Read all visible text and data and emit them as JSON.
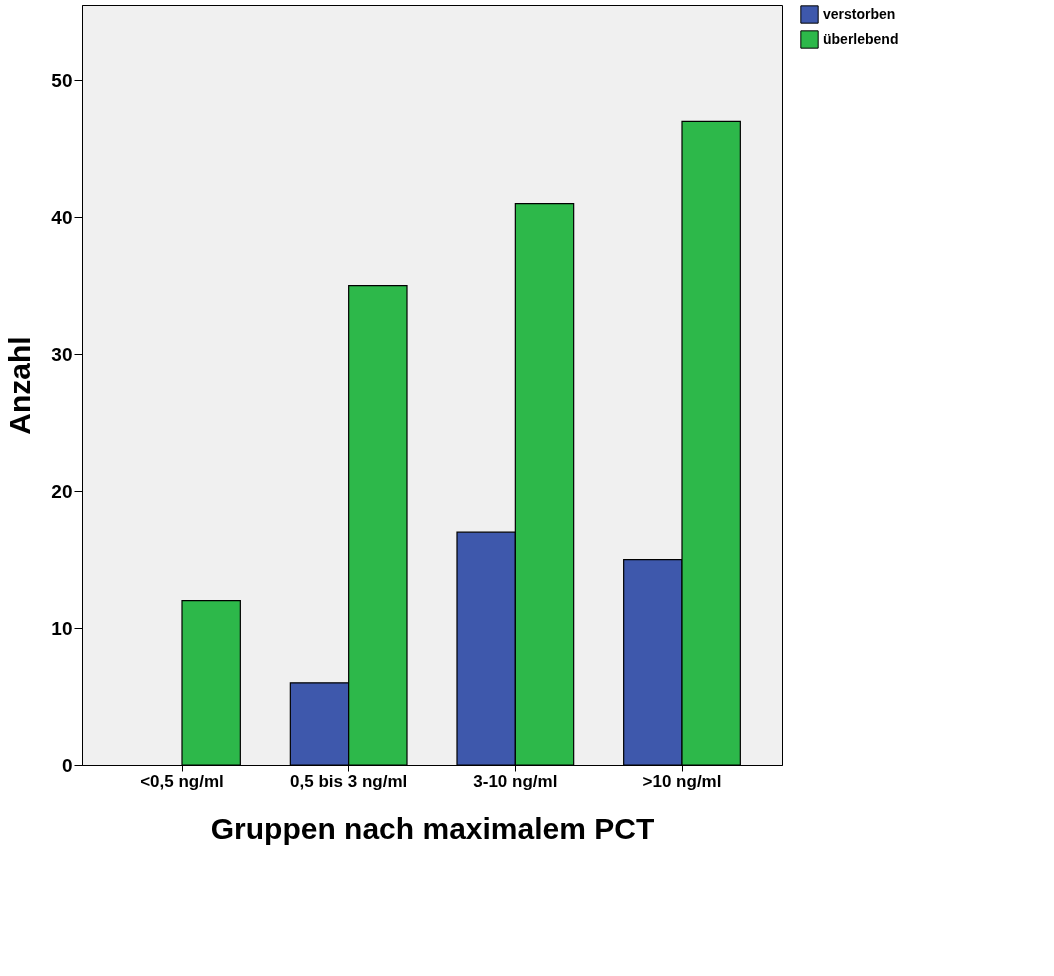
{
  "chart_data": {
    "type": "bar",
    "xlabel": "Gruppen nach maximalem PCT",
    "ylabel": "Anzahl",
    "categories": [
      "<0,5 ng/ml",
      "0,5 bis 3 ng/ml",
      "3-10 ng/ml",
      ">10 ng/ml"
    ],
    "series": [
      {
        "name": "verstorben",
        "color": "#3e58ac",
        "values": [
          null,
          6,
          17,
          15
        ]
      },
      {
        "name": "überlebend",
        "color": "#2db84a",
        "values": [
          12,
          35,
          41,
          47
        ]
      }
    ],
    "ylim": [
      0,
      55.5
    ],
    "yticks": [
      0,
      10,
      20,
      30,
      40,
      50
    ],
    "grid": false,
    "legend": "top right"
  }
}
